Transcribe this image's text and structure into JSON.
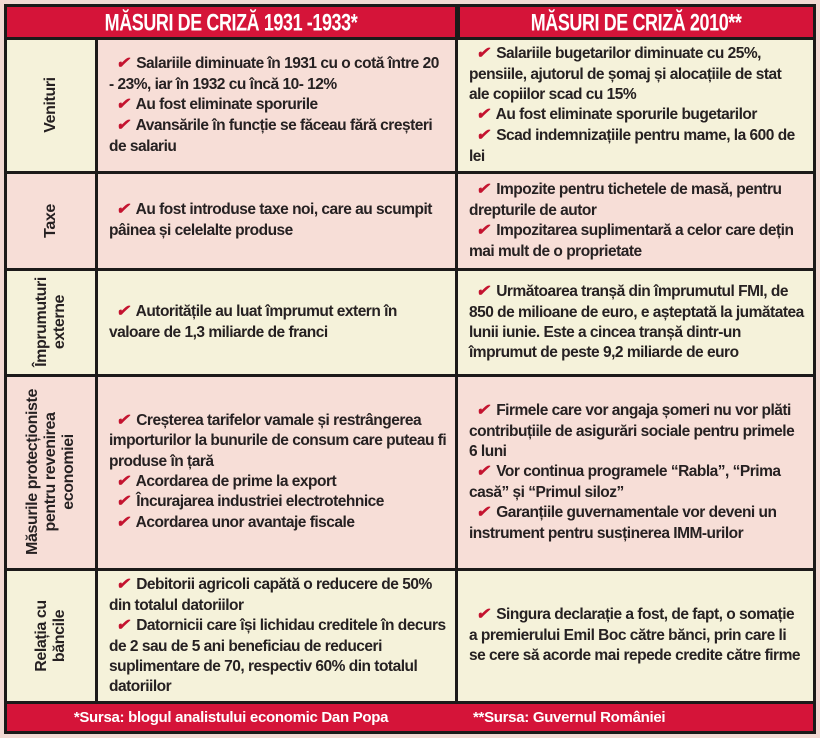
{
  "header": {
    "col1931": "MĂSURI DE CRIZĂ 1931 -1933*",
    "col2010": "MĂSURI DE CRIZĂ 2010**"
  },
  "rows": [
    {
      "label": "Venituri",
      "label_bg": "cream",
      "col1931_bg": "pink",
      "col2010_bg": "cream",
      "items_1931": [
        "Salariile diminuate în 1931 cu o cotă între 20 - 23%, iar în 1932 cu încă 10- 12%",
        "Au fost eliminate sporurile",
        "Avansările în funcție se făceau fără creșteri de salariu"
      ],
      "items_2010": [
        "Salariile bugetarilor diminuate cu 25%, pensiile, ajutorul de șomaj și alocațiile de stat ale copiilor scad cu 15%",
        "Au fost eliminate sporurile bugetarilor",
        "Scad indemnizațiile pentru mame, la 600 de lei"
      ]
    },
    {
      "label": "Taxe",
      "label_bg": "pink",
      "col1931_bg": "pink",
      "col2010_bg": "pink",
      "items_1931": [
        "Au fost introduse taxe noi, care au scumpit pâinea și celelalte produse"
      ],
      "items_2010": [
        "Impozite pentru tichetele de masă, pentru drepturile de autor",
        "Impozitarea suplimentară a celor care dețin mai mult de o proprietate"
      ]
    },
    {
      "label": "Împrumuturi externe",
      "label_bg": "cream",
      "col1931_bg": "cream",
      "col2010_bg": "cream",
      "items_1931": [
        "Autoritățile au luat împrumut extern în valoare de 1,3 miliarde de franci"
      ],
      "items_2010": [
        "Următoarea tranșă din împrumutul FMI, de 850 de milioane de euro, e așteptată la jumătatea lunii iunie. Este a cincea tranșă dintr-un împrumut de peste 9,2 miliarde de euro"
      ]
    },
    {
      "label": "Măsurile protecționiste pentru revenirea economiei",
      "label_bg": "pink",
      "col1931_bg": "pink",
      "col2010_bg": "pink",
      "items_1931": [
        "Creșterea tarifelor vamale și restrângerea importurilor la bunurile de consum care puteau fi produse în țară",
        "Acordarea de prime la export",
        "Încurajarea industriei electrotehnice",
        "Acordarea unor avantaje fiscale"
      ],
      "items_2010": [
        "Firmele care vor angaja șomeri nu vor plăti contribuțiile de asigurări sociale pentru primele 6 luni",
        "Vor continua programele “Rabla”, “Prima casă” și “Primul siloz”",
        "Garanțiile guvernamentale vor deveni un instrument pentru susținerea IMM-urilor"
      ]
    },
    {
      "label": "Relația cu băncile",
      "label_bg": "cream",
      "col1931_bg": "cream",
      "col2010_bg": "cream",
      "items_1931": [
        "Debitorii agricoli capătă o reducere de 50% din totalul datoriilor",
        "Datornicii care își lichidau creditele în decurs de 2 sau de 5 ani beneficiau de reduceri suplimentare de 70, respectiv 60% din totalul datoriilor"
      ],
      "items_2010": [
        "Singura declarație a fost, de fapt, o somație a premierului Emil Boc către bănci, prin care li se cere să acorde mai repede credite către firme"
      ]
    }
  ],
  "footer": {
    "source1931": "*Sursa: blogul analistului economic Dan Popa",
    "source2010": "**Sursa: Guvernul României"
  },
  "icons": {
    "check": "✔"
  },
  "colors": {
    "red": "#d51439",
    "cream": "#f5f2da",
    "pink": "#f7ded7",
    "page_bg": "#f2d9d3",
    "border": "#1c1a19",
    "text": "#262122",
    "check": "#c4132f",
    "header_text": "#ffffff"
  }
}
